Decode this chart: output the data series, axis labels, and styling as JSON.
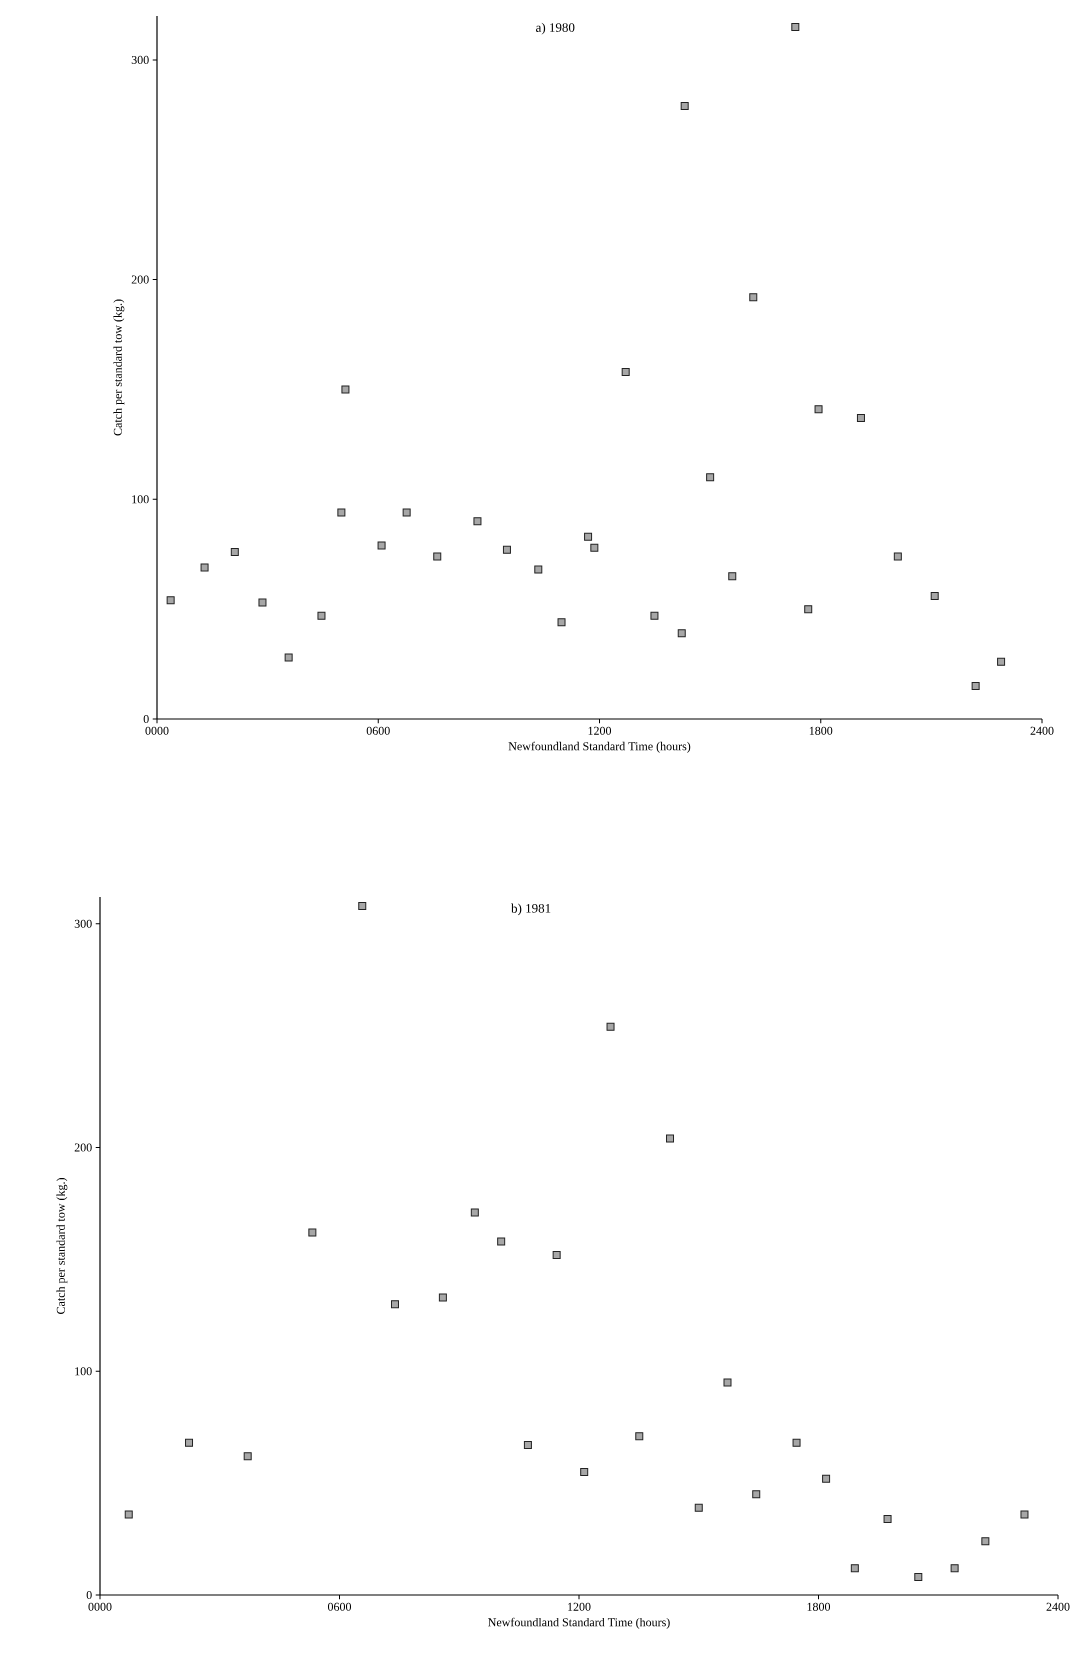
{
  "chart_data": [
    {
      "type": "scatter",
      "title": "a)  1980",
      "xlabel": "Newfoundland Standard Time (hours)",
      "ylabel": "Catch per standard tow (kg.)",
      "marker": "square",
      "color": "#222222",
      "x": [
        37,
        129,
        211,
        286,
        357,
        446,
        511,
        500,
        609,
        677,
        760,
        869,
        949,
        1034,
        1097,
        1169,
        1186,
        1271,
        1349,
        1423,
        1431,
        1500,
        1560,
        1617,
        1731,
        1766,
        1794,
        1909,
        2009,
        2109,
        2220,
        2289
      ],
      "values": [
        54,
        69,
        76,
        53,
        28,
        47,
        150,
        94,
        79,
        94,
        74,
        90,
        77,
        68,
        44,
        83,
        78,
        158,
        47,
        39,
        279,
        110,
        65,
        192,
        315,
        50,
        141,
        137,
        74,
        56,
        15,
        26
      ],
      "xlim": [
        0,
        2400
      ],
      "ylim": [
        0,
        320
      ],
      "xticks": [
        {
          "value": 0,
          "label": "0000"
        },
        {
          "value": 600,
          "label": "0600"
        },
        {
          "value": 1200,
          "label": "1200"
        },
        {
          "value": 1800,
          "label": "1800"
        },
        {
          "value": 2400,
          "label": "2400"
        }
      ],
      "yticks": [
        0,
        100,
        200,
        300
      ]
    },
    {
      "type": "scatter",
      "title": "b)  1981",
      "xlabel": "Newfoundland Standard Time (hours)",
      "ylabel": "Catch per standard tow (kg.)",
      "marker": "square",
      "color": "#222222",
      "x": [
        72,
        223,
        370,
        532,
        657,
        739,
        859,
        939,
        1005,
        1072,
        1144,
        1213,
        1279,
        1351,
        1428,
        1500,
        1572,
        1644,
        1745,
        1819,
        1891,
        1973,
        2050,
        2141,
        2218,
        2316
      ],
      "values": [
        36,
        68,
        62,
        162,
        308,
        130,
        133,
        171,
        158,
        67,
        152,
        55,
        254,
        71,
        204,
        39,
        95,
        45,
        68,
        52,
        12,
        34,
        8,
        12,
        24,
        36
      ],
      "xlim": [
        0,
        2400
      ],
      "ylim": [
        0,
        312
      ],
      "xticks": [
        {
          "value": 0,
          "label": "0000"
        },
        {
          "value": 600,
          "label": "0600"
        },
        {
          "value": 1200,
          "label": "1200"
        },
        {
          "value": 1800,
          "label": "1800"
        },
        {
          "value": 2400,
          "label": "2400"
        }
      ],
      "yticks": [
        0,
        100,
        200,
        300
      ]
    }
  ]
}
